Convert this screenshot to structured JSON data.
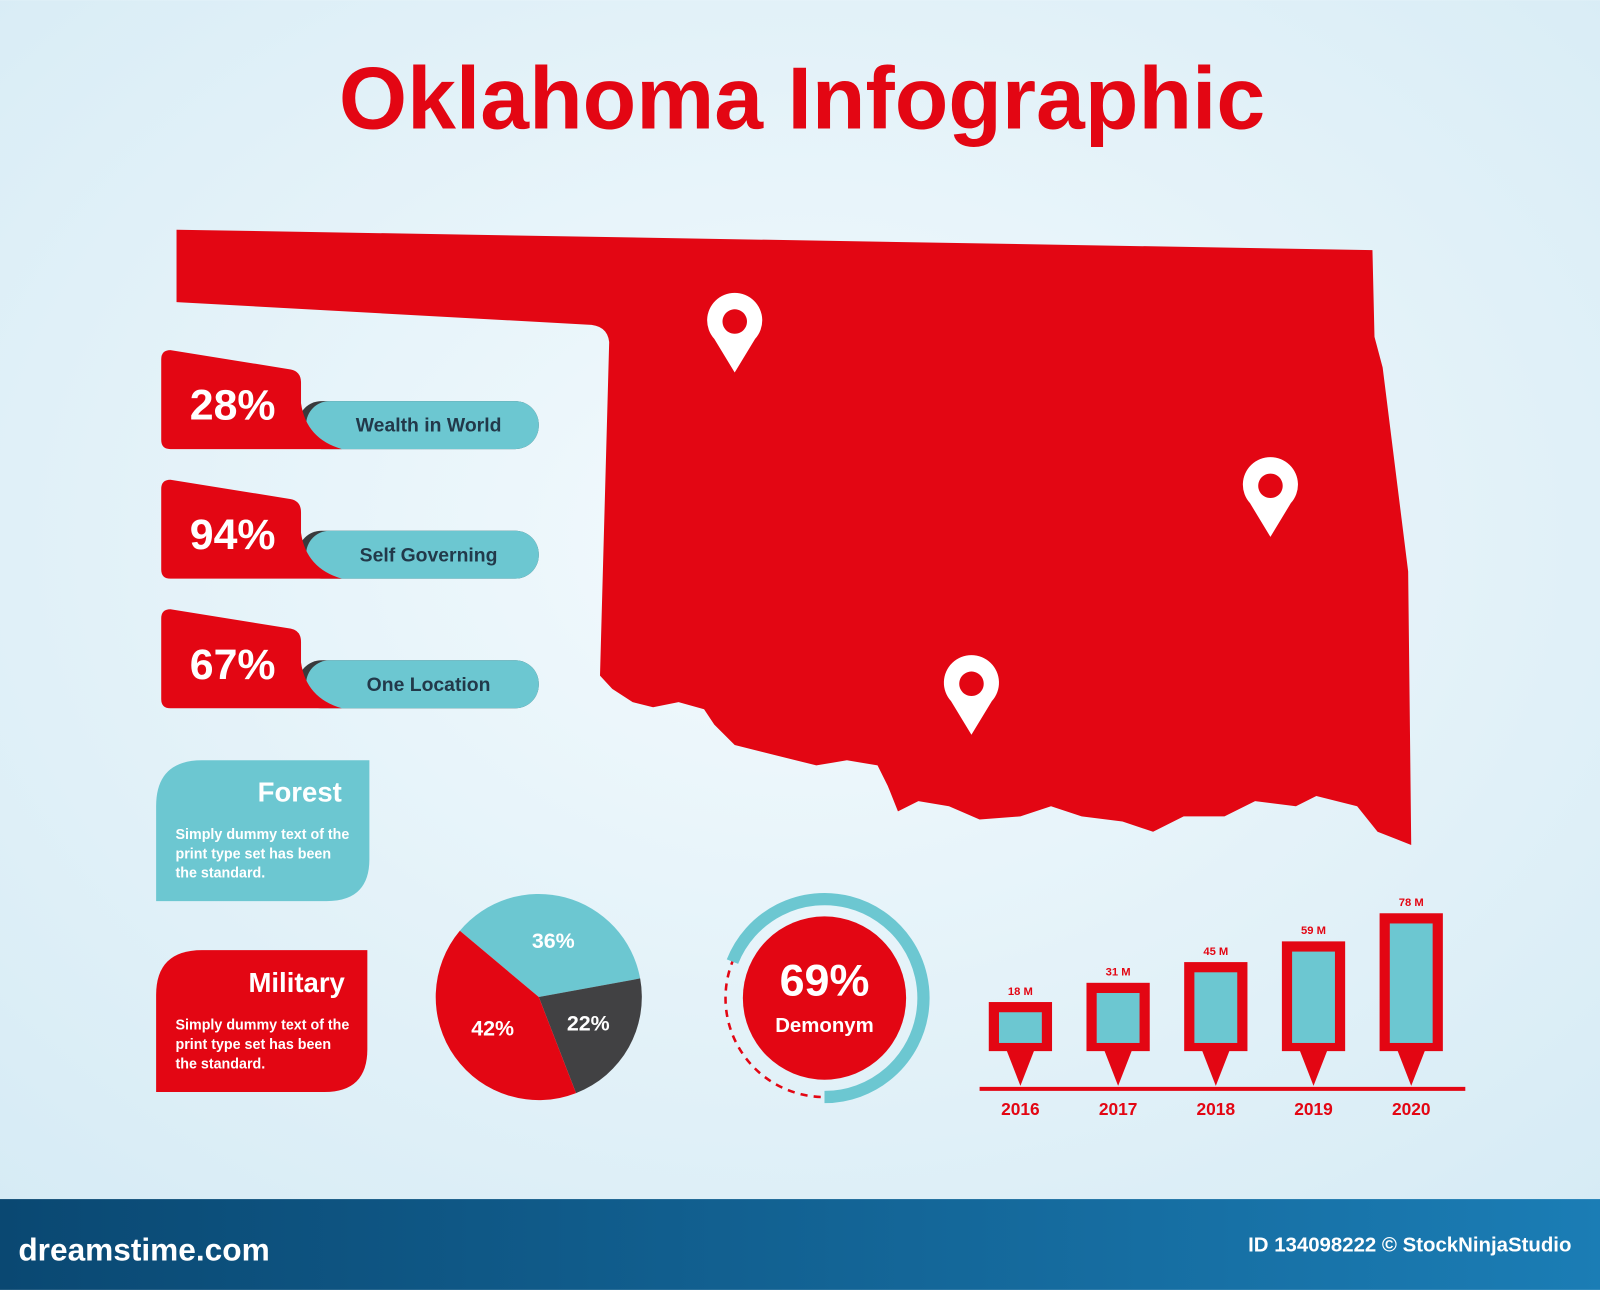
{
  "title": "Oklahoma Infographic",
  "stats": [
    {
      "label": "28%",
      "text": "Wealth in World"
    },
    {
      "label": "94%",
      "text": "Self Governing"
    },
    {
      "label": "67%",
      "text": "One Location"
    }
  ],
  "cards": [
    {
      "title": "Forest",
      "text": "Simply dummy text of the print type set has been the standard."
    },
    {
      "title": "Military",
      "text": "Simply dummy text of the print type set has been the standard."
    }
  ],
  "chart_data": [
    {
      "type": "pie",
      "values": [
        36,
        22,
        42
      ],
      "value_labels": [
        "36%",
        "22%",
        "42%"
      ],
      "colors": [
        "#6cc7d1",
        "#414143",
        "#e30613"
      ]
    },
    {
      "type": "donut",
      "value": 69,
      "value_label": "69%",
      "name": "Demonym",
      "color": "#6cc7d1",
      "center_color": "#e30613"
    },
    {
      "type": "bar",
      "categories": [
        "2016",
        "2017",
        "2018",
        "2019",
        "2020"
      ],
      "values": [
        18,
        31,
        45,
        59,
        78
      ],
      "value_labels": [
        "18 M",
        "31 M",
        "45 M",
        "59 M",
        "78 M"
      ],
      "color": "#e30613",
      "inner_color": "#6cc7d1"
    }
  ],
  "footer": {
    "site": "dreamstime.com",
    "credit": "ID 134098222 © StockNinjaStudio"
  }
}
